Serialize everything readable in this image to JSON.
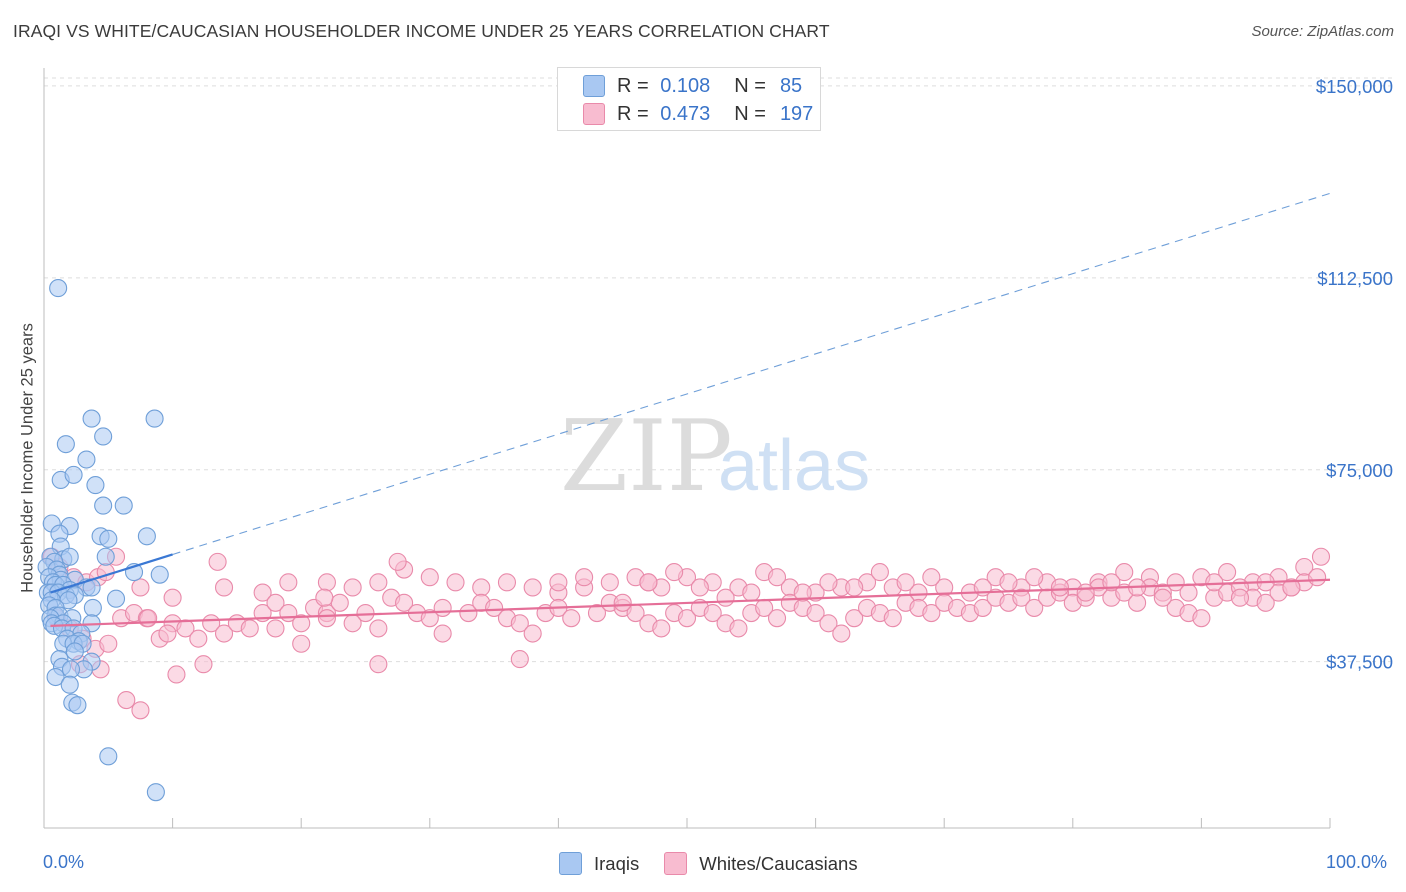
{
  "title": "IRAQI VS WHITE/CAUCASIAN HOUSEHOLDER INCOME UNDER 25 YEARS CORRELATION CHART",
  "source": "Source: ZipAtlas.com",
  "watermark": {
    "zip": "ZIP",
    "atlas": "atlas"
  },
  "legend_top": {
    "rows": [
      {
        "r_label": "R =",
        "r_value": "0.108",
        "n_label": "N =",
        "n_value": "85",
        "color": "#a9c8f2",
        "stroke": "#6f9fd8"
      },
      {
        "r_label": "R =",
        "r_value": "0.473",
        "n_label": "N =",
        "n_value": "197",
        "color": "#f8bcd0",
        "stroke": "#e98aaa"
      }
    ]
  },
  "legend_bottom": [
    {
      "label": "Iraqis",
      "color": "#a9c8f2",
      "stroke": "#6f9fd8"
    },
    {
      "label": "Whites/Caucasians",
      "color": "#f8bcd0",
      "stroke": "#e98aaa"
    }
  ],
  "chart_data": {
    "type": "scatter",
    "title": "IRAQI VS WHITE/CAUCASIAN HOUSEHOLDER INCOME UNDER 25 YEARS CORRELATION CHART",
    "xlabel": "",
    "ylabel": "Householder Income Under 25 years",
    "x_tick_labels": [
      "0.0%",
      "100.0%"
    ],
    "y_tick_labels": [
      "$37,500",
      "$75,000",
      "$112,500",
      "$150,000"
    ],
    "y_ticks": [
      37500,
      75000,
      112500,
      150000
    ],
    "xlim": [
      0,
      100
    ],
    "ylim": [
      5000,
      153500
    ],
    "grid": true,
    "legend_position": "top-center",
    "series": [
      {
        "name": "Iraqis",
        "color": "#a9c8f2",
        "stroke": "#6f9fd8",
        "trend": {
          "x0": 0.5,
          "y0": 51000,
          "x1": 100,
          "y1": 129000,
          "solid_until": 10
        },
        "points": [
          [
            1.1,
            110.5
          ],
          [
            3.7,
            85
          ],
          [
            8.6,
            85
          ],
          [
            1.7,
            80
          ],
          [
            4.6,
            81.5
          ],
          [
            3.3,
            77
          ],
          [
            1.3,
            73
          ],
          [
            2.3,
            74
          ],
          [
            4,
            72
          ],
          [
            4.6,
            68
          ],
          [
            6.2,
            68
          ],
          [
            0.6,
            64.5
          ],
          [
            2,
            64
          ],
          [
            1.2,
            62.5
          ],
          [
            4.4,
            62
          ],
          [
            5,
            61.5
          ],
          [
            8,
            62
          ],
          [
            1.3,
            60
          ],
          [
            0.5,
            58
          ],
          [
            1.5,
            57.5
          ],
          [
            2,
            58
          ],
          [
            4.8,
            58
          ],
          [
            0.8,
            57
          ],
          [
            0.2,
            56
          ],
          [
            1,
            55.5
          ],
          [
            1.2,
            54.5
          ],
          [
            0.4,
            54
          ],
          [
            1.3,
            53.5
          ],
          [
            2.4,
            53.5
          ],
          [
            7,
            55
          ],
          [
            9,
            54.5
          ],
          [
            0.7,
            53
          ],
          [
            0.9,
            52.5
          ],
          [
            1.5,
            52.5
          ],
          [
            3.3,
            52
          ],
          [
            3.7,
            52
          ],
          [
            2,
            51.5
          ],
          [
            0.3,
            51
          ],
          [
            0.6,
            51
          ],
          [
            1.1,
            51
          ],
          [
            1.7,
            50.5
          ],
          [
            2.4,
            50.5
          ],
          [
            0.6,
            49.5
          ],
          [
            1.9,
            49.5
          ],
          [
            5.6,
            49.8
          ],
          [
            0.4,
            48.5
          ],
          [
            0.9,
            48
          ],
          [
            3.8,
            48
          ],
          [
            0.9,
            46.5
          ],
          [
            1.2,
            46.5
          ],
          [
            0.5,
            46
          ],
          [
            2.2,
            46
          ],
          [
            0.6,
            45
          ],
          [
            1.5,
            45
          ],
          [
            3.7,
            45
          ],
          [
            0.8,
            44.5
          ],
          [
            1.4,
            44
          ],
          [
            2.3,
            44
          ],
          [
            2.9,
            43
          ],
          [
            1.8,
            42
          ],
          [
            2.7,
            41.5
          ],
          [
            1.5,
            41
          ],
          [
            2.3,
            41
          ],
          [
            3,
            41
          ],
          [
            2.4,
            39.5
          ],
          [
            1.2,
            38
          ],
          [
            3.7,
            37.5
          ],
          [
            1.4,
            36.5
          ],
          [
            3.1,
            36
          ],
          [
            2.1,
            36
          ],
          [
            0.9,
            34.5
          ],
          [
            2,
            33
          ],
          [
            2.2,
            29.5
          ],
          [
            2.6,
            29
          ],
          [
            5,
            19
          ],
          [
            8.7,
            12
          ]
        ]
      },
      {
        "name": "Whites/Caucasians",
        "color": "#f8bcd0",
        "stroke": "#e98aaa",
        "trend": {
          "x0": 0.5,
          "y0": 44500,
          "x1": 100,
          "y1": 53500
        },
        "points": [
          [
            0.6,
            58
          ],
          [
            1.2,
            56
          ],
          [
            2.3,
            54
          ],
          [
            3.3,
            53
          ],
          [
            4.2,
            54
          ],
          [
            7.5,
            52
          ],
          [
            10,
            50
          ],
          [
            14,
            52
          ],
          [
            17,
            51
          ],
          [
            19,
            53
          ],
          [
            22,
            53
          ],
          [
            24,
            52
          ],
          [
            26,
            53
          ],
          [
            28,
            55.5
          ],
          [
            30,
            54
          ],
          [
            32,
            53
          ],
          [
            34,
            52
          ],
          [
            36,
            53
          ],
          [
            38,
            52
          ],
          [
            40,
            51
          ],
          [
            42,
            52
          ],
          [
            44,
            53
          ],
          [
            46,
            54
          ],
          [
            48,
            52
          ],
          [
            50,
            54
          ],
          [
            52,
            53
          ],
          [
            54,
            52
          ],
          [
            56,
            55
          ],
          [
            58,
            52
          ],
          [
            60,
            51
          ],
          [
            62,
            52
          ],
          [
            64,
            53
          ],
          [
            66,
            52
          ],
          [
            68,
            51
          ],
          [
            70,
            52
          ],
          [
            72,
            51
          ],
          [
            74,
            54
          ],
          [
            76,
            52
          ],
          [
            78,
            53
          ],
          [
            80,
            52
          ],
          [
            82,
            53
          ],
          [
            84,
            55
          ],
          [
            86,
            54
          ],
          [
            88,
            53
          ],
          [
            90,
            54
          ],
          [
            92,
            55
          ],
          [
            94,
            53
          ],
          [
            96,
            54
          ],
          [
            98,
            56
          ],
          [
            99.3,
            58
          ],
          [
            1,
            46
          ],
          [
            2,
            44
          ],
          [
            3,
            42
          ],
          [
            4,
            40
          ],
          [
            5,
            41
          ],
          [
            6,
            46
          ],
          [
            7,
            47
          ],
          [
            8,
            46
          ],
          [
            9,
            42
          ],
          [
            10,
            45
          ],
          [
            11,
            44
          ],
          [
            12,
            42
          ],
          [
            13,
            45
          ],
          [
            14,
            43
          ],
          [
            15,
            45
          ],
          [
            16,
            44
          ],
          [
            17,
            47
          ],
          [
            18,
            49
          ],
          [
            19,
            47
          ],
          [
            20,
            45
          ],
          [
            21,
            48
          ],
          [
            22,
            47
          ],
          [
            23,
            49
          ],
          [
            25,
            47
          ],
          [
            26,
            44
          ],
          [
            27,
            50
          ],
          [
            28,
            49
          ],
          [
            29,
            47
          ],
          [
            30,
            46
          ],
          [
            31,
            48
          ],
          [
            33,
            47
          ],
          [
            34,
            49
          ],
          [
            35,
            48
          ],
          [
            36,
            46
          ],
          [
            37,
            45
          ],
          [
            38,
            43
          ],
          [
            39,
            47
          ],
          [
            40,
            48
          ],
          [
            41,
            46
          ],
          [
            43,
            47
          ],
          [
            44,
            49
          ],
          [
            45,
            48
          ],
          [
            46,
            47
          ],
          [
            47,
            45
          ],
          [
            48,
            44
          ],
          [
            49,
            47
          ],
          [
            50,
            46
          ],
          [
            51,
            48
          ],
          [
            52,
            47
          ],
          [
            53,
            45
          ],
          [
            54,
            44
          ],
          [
            55,
            47
          ],
          [
            56,
            48
          ],
          [
            57,
            46
          ],
          [
            58,
            49
          ],
          [
            59,
            48
          ],
          [
            60,
            47
          ],
          [
            61,
            45
          ],
          [
            62,
            43
          ],
          [
            63,
            46
          ],
          [
            64,
            48
          ],
          [
            65,
            47
          ],
          [
            66,
            46
          ],
          [
            67,
            49
          ],
          [
            68,
            48
          ],
          [
            69,
            47
          ],
          [
            70,
            49
          ],
          [
            71,
            48
          ],
          [
            72,
            47
          ],
          [
            73,
            48
          ],
          [
            74,
            50
          ],
          [
            75,
            49
          ],
          [
            76,
            50
          ],
          [
            77,
            48
          ],
          [
            78,
            50
          ],
          [
            79,
            51
          ],
          [
            80,
            49
          ],
          [
            81,
            50
          ],
          [
            82,
            52
          ],
          [
            83,
            50
          ],
          [
            84,
            51
          ],
          [
            85,
            49
          ],
          [
            86,
            52
          ],
          [
            87,
            51
          ],
          [
            88,
            48
          ],
          [
            89,
            47
          ],
          [
            90,
            46
          ],
          [
            91,
            50
          ],
          [
            92,
            51
          ],
          [
            93,
            52
          ],
          [
            94,
            50
          ],
          [
            95,
            49
          ],
          [
            96,
            51
          ],
          [
            97,
            52
          ],
          [
            98,
            53
          ],
          [
            99,
            54
          ],
          [
            2.8,
            37
          ],
          [
            4.4,
            36
          ],
          [
            6.4,
            30
          ],
          [
            7.5,
            28
          ],
          [
            8.1,
            46
          ],
          [
            9.6,
            43
          ],
          [
            10.3,
            35
          ],
          [
            12.4,
            37
          ],
          [
            18,
            44
          ],
          [
            20,
            41
          ],
          [
            22,
            46
          ],
          [
            24,
            45
          ],
          [
            26,
            37
          ],
          [
            31,
            43
          ],
          [
            37,
            38
          ],
          [
            40,
            53
          ],
          [
            42,
            54
          ],
          [
            45,
            49
          ],
          [
            47,
            53
          ],
          [
            49,
            55
          ],
          [
            51,
            52
          ],
          [
            53,
            50
          ],
          [
            55,
            51
          ],
          [
            57,
            54
          ],
          [
            59,
            51
          ],
          [
            61,
            53
          ],
          [
            63,
            52
          ],
          [
            65,
            55
          ],
          [
            67,
            53
          ],
          [
            69,
            54
          ],
          [
            73,
            52
          ],
          [
            75,
            53
          ],
          [
            77,
            54
          ],
          [
            79,
            52
          ],
          [
            81,
            51
          ],
          [
            83,
            53
          ],
          [
            85,
            52
          ],
          [
            87,
            50
          ],
          [
            89,
            51
          ],
          [
            91,
            53
          ],
          [
            93,
            50
          ],
          [
            95,
            53
          ],
          [
            97,
            52
          ],
          [
            4.8,
            55
          ],
          [
            5.6,
            58
          ],
          [
            13.5,
            57
          ],
          [
            21.8,
            50
          ],
          [
            27.5,
            57
          ],
          [
            47,
            53
          ]
        ]
      }
    ]
  }
}
